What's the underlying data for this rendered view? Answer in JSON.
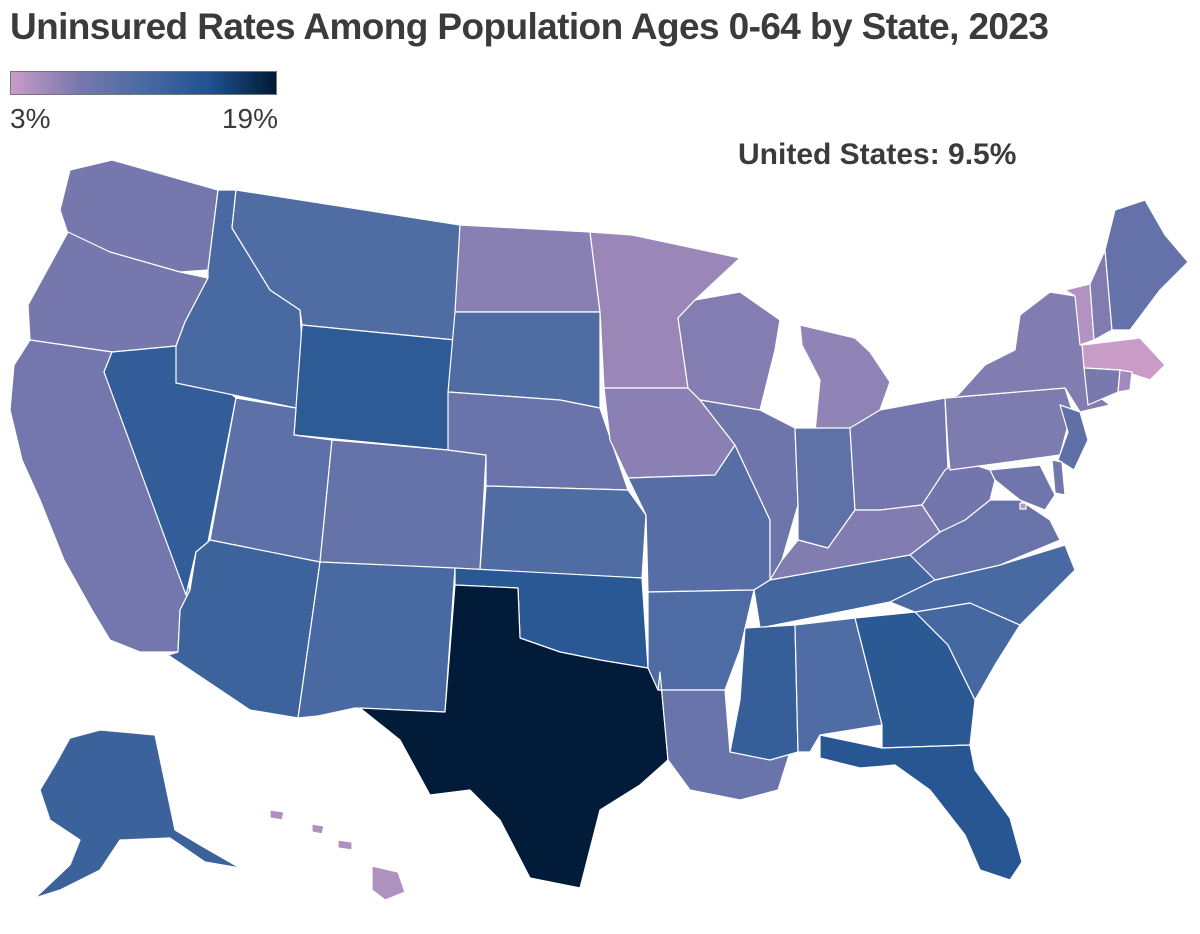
{
  "title": "Uninsured Rates Among Population Ages 0-64 by State, 2023",
  "legend": {
    "min_label": "3%",
    "max_label": "19%",
    "min_value": 3,
    "max_value": 19,
    "gradient_colors": [
      "#c99cc8",
      "#7a79ae",
      "#4a6aa2",
      "#1f528f",
      "#001a36"
    ]
  },
  "summary": "United States: 9.5%",
  "states": [
    {
      "code": "WA",
      "value": 7.3
    },
    {
      "code": "OR",
      "value": 7.3
    },
    {
      "code": "CA",
      "value": 7.5
    },
    {
      "code": "NV",
      "value": 13.2
    },
    {
      "code": "ID",
      "value": 11.2
    },
    {
      "code": "MT",
      "value": 10.6
    },
    {
      "code": "WY",
      "value": 13.6
    },
    {
      "code": "UT",
      "value": 9.4
    },
    {
      "code": "CO",
      "value": 8.7
    },
    {
      "code": "AZ",
      "value": 12.2
    },
    {
      "code": "NM",
      "value": 11.2
    },
    {
      "code": "ND",
      "value": 6.3
    },
    {
      "code": "SD",
      "value": 10.6
    },
    {
      "code": "NE",
      "value": 8.3
    },
    {
      "code": "KS",
      "value": 10.6
    },
    {
      "code": "OK",
      "value": 14.0
    },
    {
      "code": "TX",
      "value": 18.9
    },
    {
      "code": "MN",
      "value": 5.4
    },
    {
      "code": "IA",
      "value": 6.2
    },
    {
      "code": "MO",
      "value": 10.0
    },
    {
      "code": "AR",
      "value": 10.7
    },
    {
      "code": "LA",
      "value": 8.4
    },
    {
      "code": "WI",
      "value": 6.5
    },
    {
      "code": "IL",
      "value": 8.0
    },
    {
      "code": "MI",
      "value": 5.9
    },
    {
      "code": "IN",
      "value": 9.2
    },
    {
      "code": "OH",
      "value": 7.5
    },
    {
      "code": "KY",
      "value": 6.6
    },
    {
      "code": "TN",
      "value": 11.6
    },
    {
      "code": "MS",
      "value": 12.9
    },
    {
      "code": "AL",
      "value": 10.5
    },
    {
      "code": "GA",
      "value": 13.9
    },
    {
      "code": "FL",
      "value": 14.3
    },
    {
      "code": "SC",
      "value": 11.4
    },
    {
      "code": "NC",
      "value": 11.1
    },
    {
      "code": "VA",
      "value": 8.5
    },
    {
      "code": "WV",
      "value": 7.7
    },
    {
      "code": "PA",
      "value": 6.8
    },
    {
      "code": "NY",
      "value": 6.6
    },
    {
      "code": "VT",
      "value": 4.2
    },
    {
      "code": "NH",
      "value": 6.7
    },
    {
      "code": "ME",
      "value": 8.8
    },
    {
      "code": "MA",
      "value": 3.0
    },
    {
      "code": "CT",
      "value": 7.1
    },
    {
      "code": "RI",
      "value": 5.0
    },
    {
      "code": "NJ",
      "value": 9.3
    },
    {
      "code": "DE",
      "value": 7.6
    },
    {
      "code": "MD",
      "value": 7.9
    },
    {
      "code": "DC",
      "value": 3.9
    },
    {
      "code": "AK",
      "value": 12.4
    },
    {
      "code": "HI",
      "value": 4.3
    }
  ]
}
